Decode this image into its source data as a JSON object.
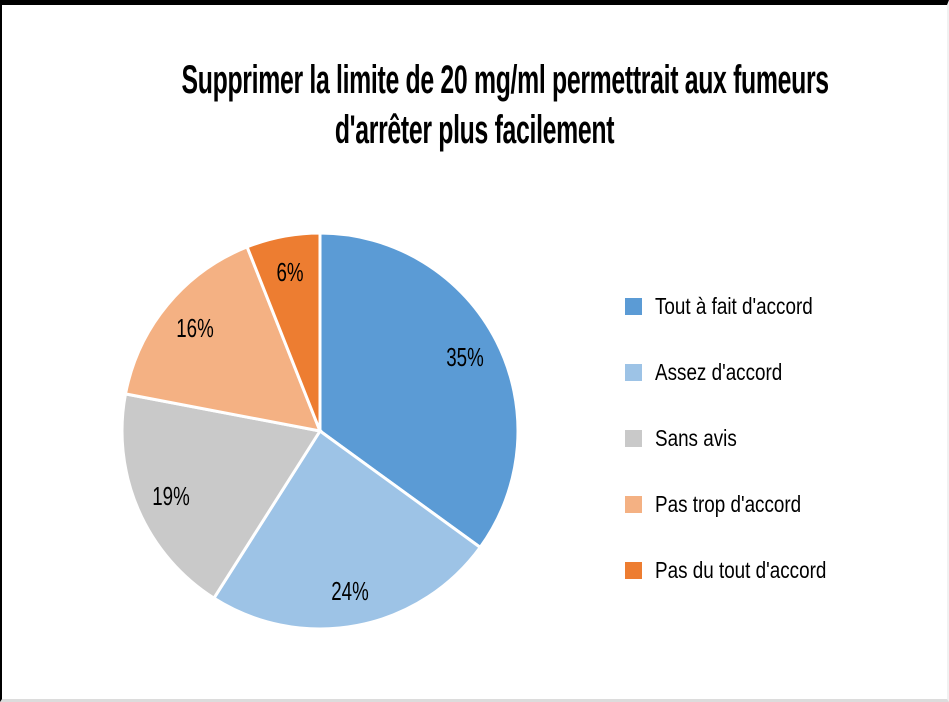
{
  "chart_data": {
    "type": "pie",
    "title": "Supprimer la limite de 20 mg/ml permettrait aux fumeurs d'arrêter plus facilement",
    "title_lines": [
      "Supprimer la limite de 20 mg/ml permettrait aux fumeurs",
      "d'arrêter plus facilement"
    ],
    "categories": [
      "Tout à fait d'accord",
      "Assez d'accord",
      "Sans avis",
      "Pas trop d'accord",
      "Pas du tout d'accord"
    ],
    "values": [
      35,
      24,
      19,
      16,
      6
    ],
    "slice_labels": [
      "35%",
      "24%",
      "19%",
      "16%",
      "6%"
    ],
    "colors": [
      "#5B9BD5",
      "#9DC3E6",
      "#C9C9C9",
      "#F4B183",
      "#ED7D31"
    ],
    "slice_border_color": "#FFFFFF",
    "background": "#FFFFFF",
    "text_color": "#000000",
    "legend_position": "right",
    "start_angle_deg": -90,
    "direction": "clockwise"
  }
}
